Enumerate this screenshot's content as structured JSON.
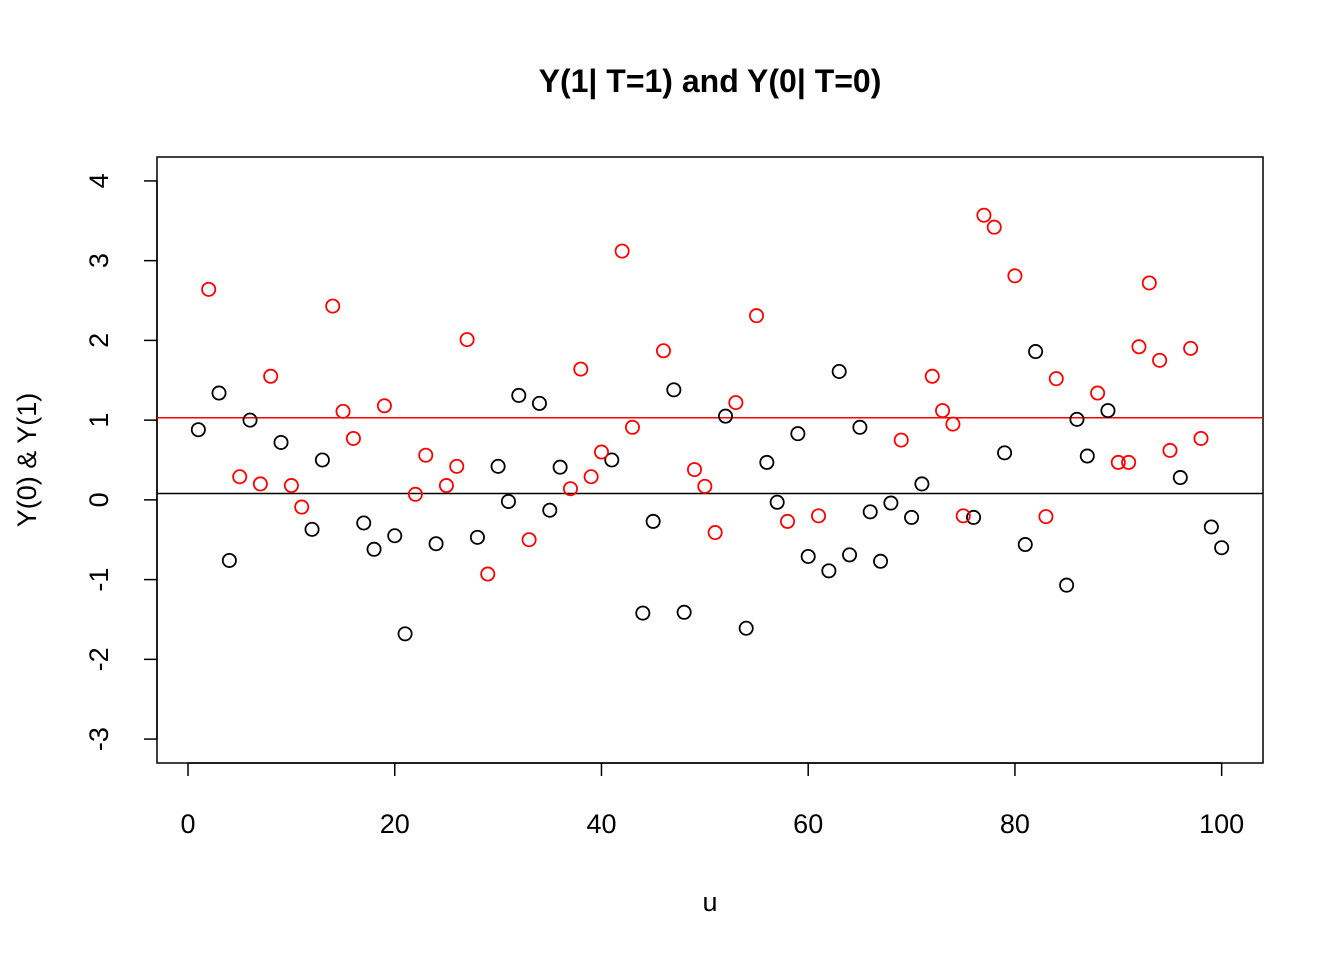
{
  "chart_data": {
    "type": "scatter",
    "title": "Y(1| T=1) and Y(0| T=0)",
    "xlabel": "u",
    "ylabel": "Y(0) & Y(1)",
    "xlim": [
      -3,
      104
    ],
    "ylim": [
      -3.3,
      4.3
    ],
    "x_ticks": [
      0,
      20,
      40,
      60,
      80,
      100
    ],
    "x_tick_labels": [
      "0",
      "20",
      "40",
      "60",
      "80",
      "100"
    ],
    "y_ticks": [
      -3,
      -2,
      -1,
      0,
      1,
      2,
      3,
      4
    ],
    "y_tick_labels": [
      "-3",
      "-2",
      "-1",
      "0",
      "1",
      "2",
      "3",
      "4"
    ],
    "grid": false,
    "marker": "open-circle",
    "series": [
      {
        "color": "#000000",
        "hline": 0.08,
        "points": [
          [
            1,
            0.88
          ],
          [
            3,
            1.34
          ],
          [
            4,
            -0.76
          ],
          [
            6,
            1.0
          ],
          [
            9,
            0.72
          ],
          [
            12,
            -0.37
          ],
          [
            13,
            0.5
          ],
          [
            17,
            -0.29
          ],
          [
            18,
            -0.62
          ],
          [
            20,
            -0.45
          ],
          [
            21,
            -1.68
          ],
          [
            24,
            -0.55
          ],
          [
            28,
            -0.47
          ],
          [
            30,
            0.42
          ],
          [
            31,
            -0.02
          ],
          [
            32,
            1.31
          ],
          [
            34,
            1.21
          ],
          [
            35,
            -0.13
          ],
          [
            36,
            0.41
          ],
          [
            41,
            0.5
          ],
          [
            44,
            -1.42
          ],
          [
            45,
            -0.27
          ],
          [
            47,
            1.38
          ],
          [
            48,
            -1.41
          ],
          [
            52,
            1.05
          ],
          [
            54,
            -1.61
          ],
          [
            56,
            0.47
          ],
          [
            57,
            -0.03
          ],
          [
            59,
            0.83
          ],
          [
            60,
            -0.71
          ],
          [
            62,
            -0.89
          ],
          [
            63,
            1.61
          ],
          [
            64,
            -0.69
          ],
          [
            65,
            0.91
          ],
          [
            66,
            -0.15
          ],
          [
            67,
            -0.77
          ],
          [
            68,
            -0.04
          ],
          [
            70,
            -0.22
          ],
          [
            71,
            0.2
          ],
          [
            76,
            -0.22
          ],
          [
            79,
            0.59
          ],
          [
            81,
            -0.56
          ],
          [
            82,
            1.86
          ],
          [
            85,
            -1.07
          ],
          [
            86,
            1.01
          ],
          [
            87,
            0.55
          ],
          [
            89,
            1.12
          ],
          [
            96,
            0.28
          ],
          [
            99,
            -0.34
          ],
          [
            100,
            -0.6
          ]
        ]
      },
      {
        "color": "#ff0000",
        "hline": 1.03,
        "points": [
          [
            2,
            2.64
          ],
          [
            5,
            0.29
          ],
          [
            7,
            0.2
          ],
          [
            8,
            1.55
          ],
          [
            10,
            0.18
          ],
          [
            11,
            -0.09
          ],
          [
            14,
            2.43
          ],
          [
            15,
            1.11
          ],
          [
            16,
            0.77
          ],
          [
            19,
            1.18
          ],
          [
            22,
            0.07
          ],
          [
            23,
            0.56
          ],
          [
            25,
            0.18
          ],
          [
            26,
            0.42
          ],
          [
            27,
            2.01
          ],
          [
            29,
            -0.93
          ],
          [
            33,
            -0.5
          ],
          [
            37,
            0.14
          ],
          [
            38,
            1.64
          ],
          [
            39,
            0.29
          ],
          [
            40,
            0.6
          ],
          [
            42,
            3.12
          ],
          [
            43,
            0.91
          ],
          [
            46,
            1.87
          ],
          [
            49,
            0.38
          ],
          [
            50,
            0.17
          ],
          [
            51,
            -0.41
          ],
          [
            53,
            1.22
          ],
          [
            55,
            2.31
          ],
          [
            58,
            -0.27
          ],
          [
            61,
            -0.2
          ],
          [
            69,
            0.75
          ],
          [
            72,
            1.55
          ],
          [
            73,
            1.12
          ],
          [
            74,
            0.95
          ],
          [
            75,
            -0.2
          ],
          [
            77,
            3.57
          ],
          [
            78,
            3.42
          ],
          [
            80,
            2.81
          ],
          [
            83,
            -0.21
          ],
          [
            84,
            1.52
          ],
          [
            88,
            1.34
          ],
          [
            90,
            0.47
          ],
          [
            91,
            0.47
          ],
          [
            92,
            1.92
          ],
          [
            93,
            2.72
          ],
          [
            94,
            1.75
          ],
          [
            95,
            0.62
          ],
          [
            97,
            1.9
          ],
          [
            98,
            0.77
          ]
        ]
      }
    ]
  }
}
